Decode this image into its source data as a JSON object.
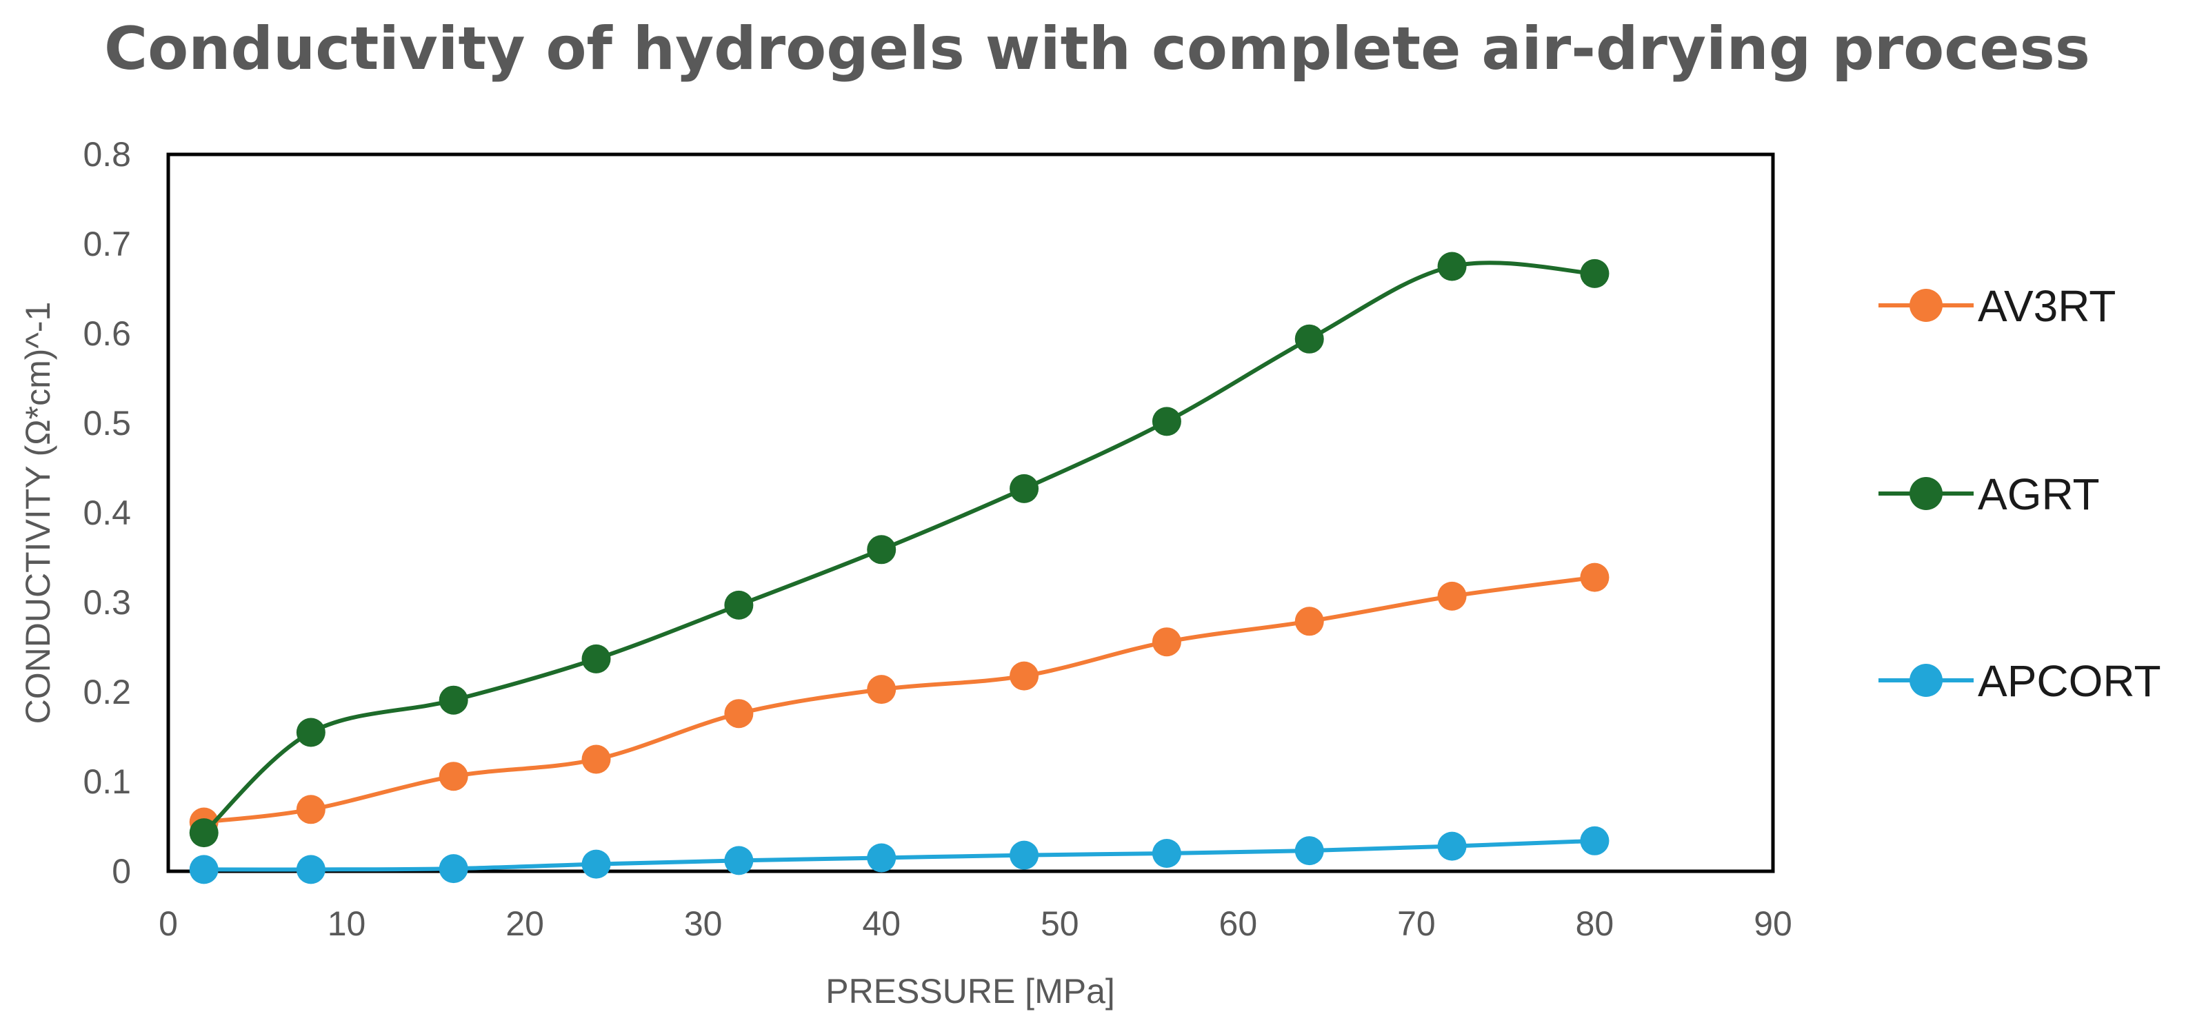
{
  "chart_data": {
    "type": "line",
    "title": "Conductivity of hydrogels with complete air-drying process",
    "xlabel": "PRESSURE [MPa]",
    "ylabel": "CONDUCTIVITY (Ω*cm)^-1",
    "xlim": [
      0,
      90
    ],
    "ylim": [
      0,
      0.8
    ],
    "xticks": [
      0,
      10,
      20,
      30,
      40,
      50,
      60,
      70,
      80,
      90
    ],
    "yticks": [
      0,
      0.1,
      0.2,
      0.3,
      0.4,
      0.5,
      0.6,
      0.7,
      0.8
    ],
    "xtick_labels": [
      "0",
      "10",
      "20",
      "30",
      "40",
      "50",
      "60",
      "70",
      "80",
      "90"
    ],
    "ytick_labels": [
      "0",
      "0.1",
      "0.2",
      "0.3",
      "0.4",
      "0.5",
      "0.6",
      "0.7",
      "0.8"
    ],
    "grid": false,
    "legend_position": "right",
    "x": [
      2,
      8,
      16,
      24,
      32,
      40,
      48,
      56,
      64,
      72,
      80
    ],
    "series": [
      {
        "name": "AV3RT",
        "color": "#F47B35",
        "values": [
          0.055,
          0.069,
          0.106,
          0.125,
          0.176,
          0.203,
          0.218,
          0.256,
          0.279,
          0.307,
          0.328
        ]
      },
      {
        "name": "AGRT",
        "color": "#1D6B2A",
        "values": [
          0.043,
          0.155,
          0.191,
          0.237,
          0.297,
          0.359,
          0.427,
          0.502,
          0.594,
          0.675,
          0.667
        ]
      },
      {
        "name": "APCORT",
        "color": "#21A6D9",
        "values": [
          0.002,
          0.002,
          0.003,
          0.008,
          0.012,
          0.015,
          0.018,
          0.02,
          0.023,
          0.028,
          0.034
        ]
      }
    ]
  }
}
